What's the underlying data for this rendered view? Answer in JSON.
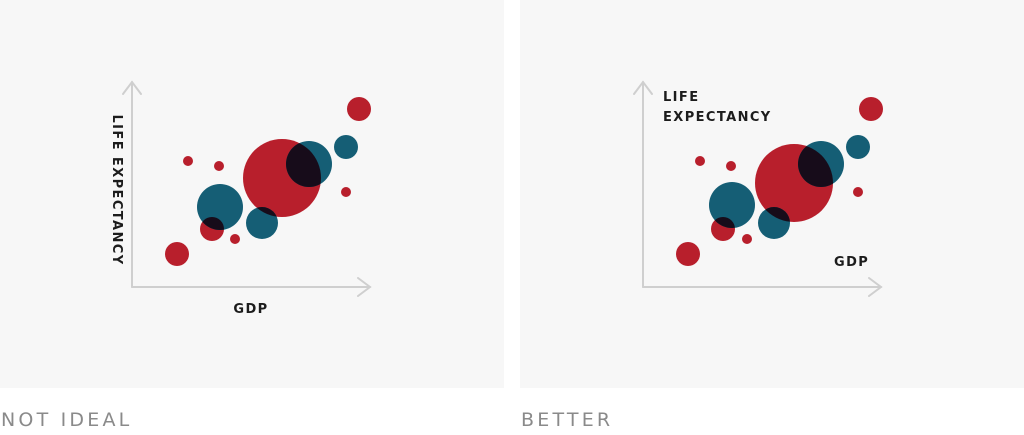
{
  "left_panel": {
    "caption": "NOT IDEAL",
    "y_label": "LIFE EXPECTANCY",
    "x_label": "GDP"
  },
  "right_panel": {
    "caption": "BETTER",
    "y_label_line1": "LIFE",
    "y_label_line2": "EXPECTANCY",
    "x_label": "GDP"
  },
  "colors": {
    "red": "#b81f2c",
    "blue": "#155e75",
    "overlap": "#170c1a",
    "axis": "#cfcfcf",
    "panel_bg": "#f7f7f7",
    "caption": "#8a8a8a"
  }
}
